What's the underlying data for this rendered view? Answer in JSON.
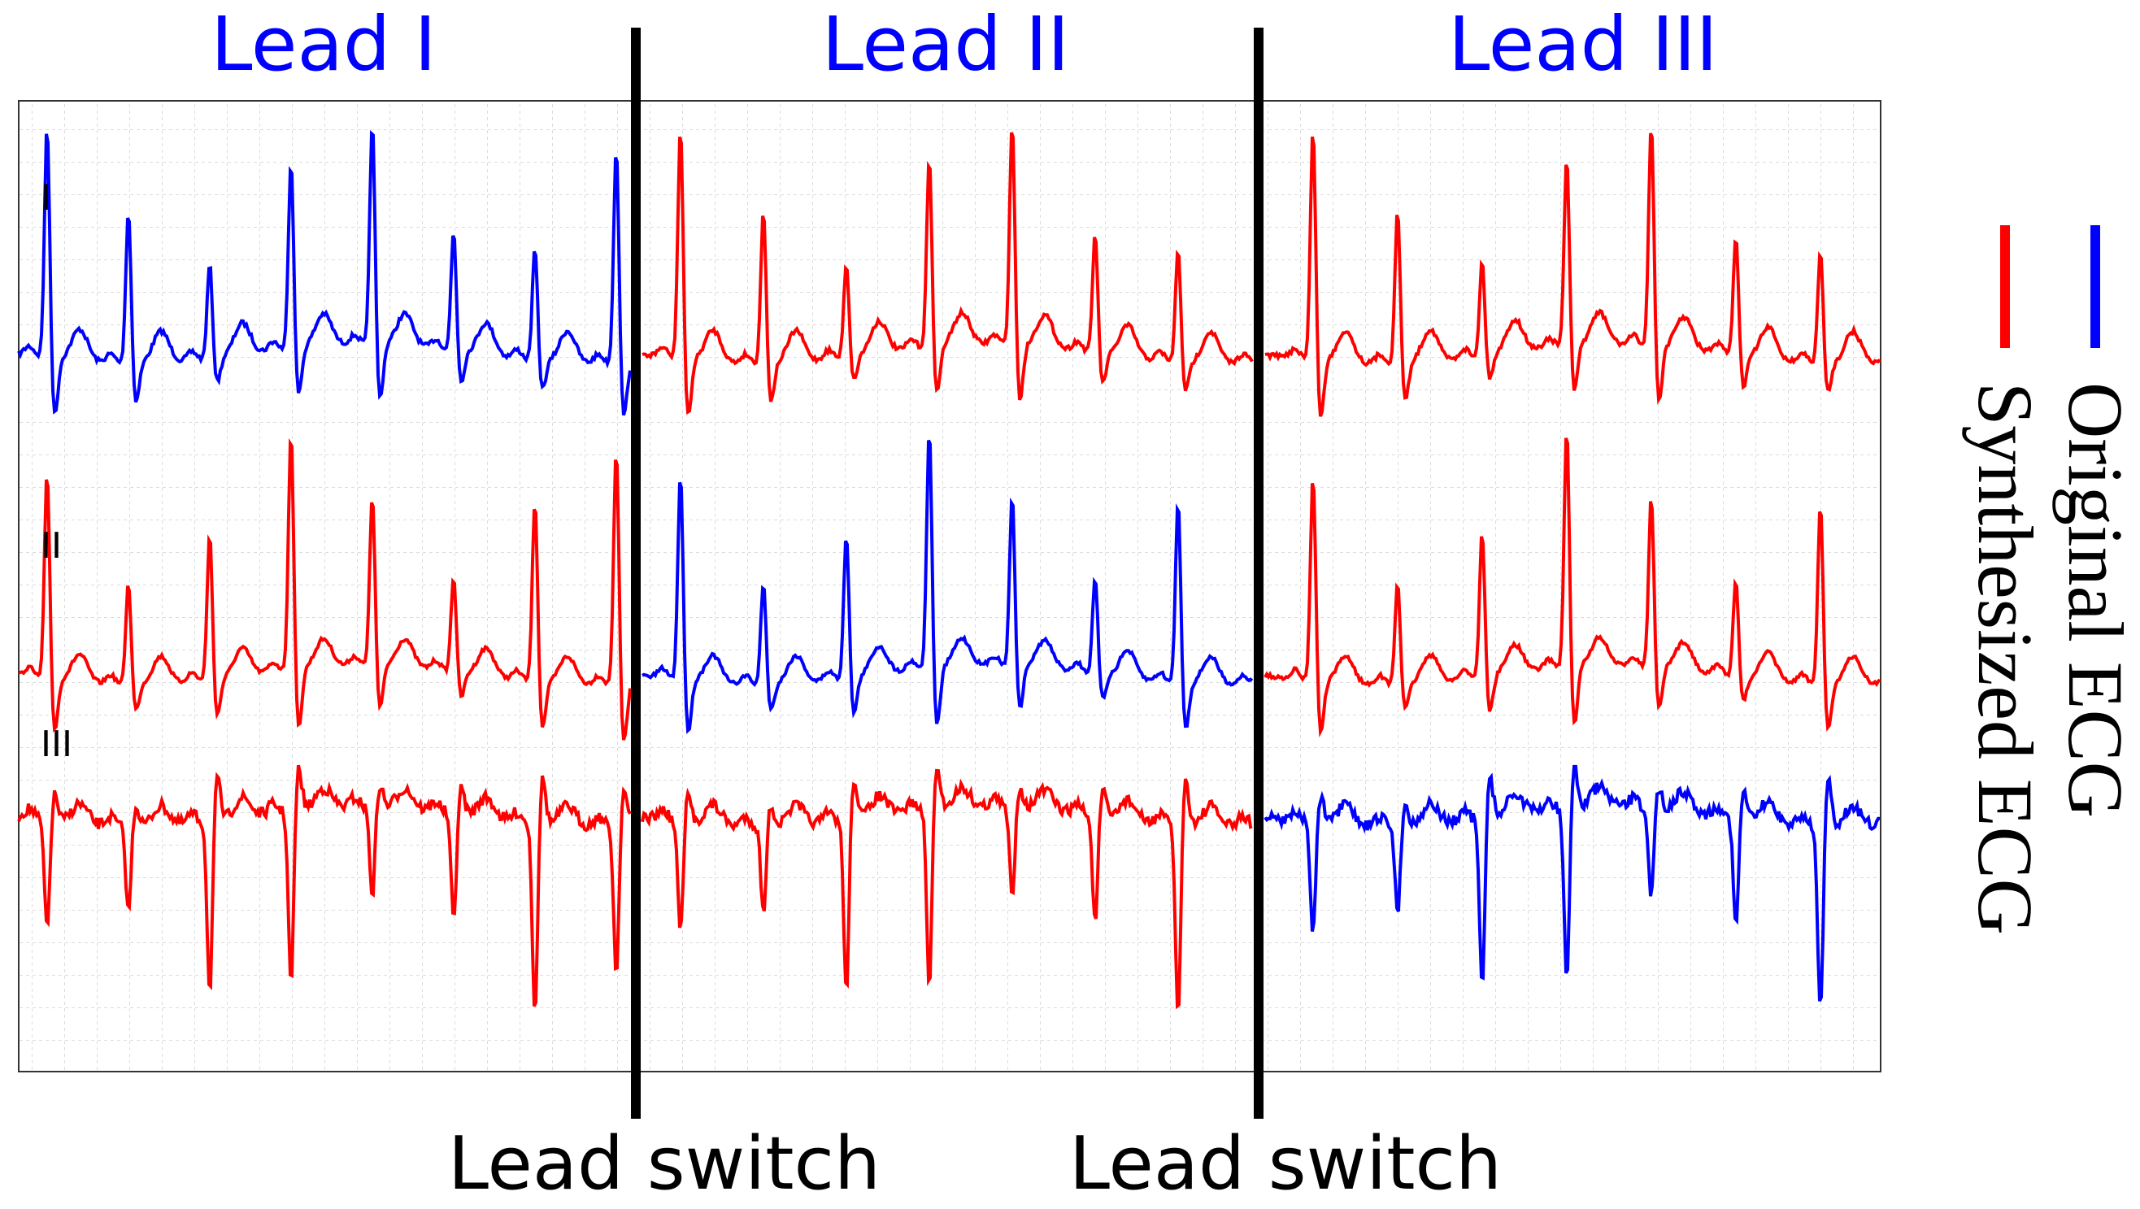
{
  "panels": [
    {
      "title": "Lead I"
    },
    {
      "title": "Lead II"
    },
    {
      "title": "Lead III"
    }
  ],
  "rows": [
    {
      "label": "I"
    },
    {
      "label": "II"
    },
    {
      "label": "III"
    }
  ],
  "legend": [
    {
      "label": "Original ECG",
      "color": "#0000ff"
    },
    {
      "label": "Synthesized ECG",
      "color": "#ff0000"
    }
  ],
  "switches": [
    {
      "label": "Lead switch"
    },
    {
      "label": "Lead switch"
    }
  ]
}
